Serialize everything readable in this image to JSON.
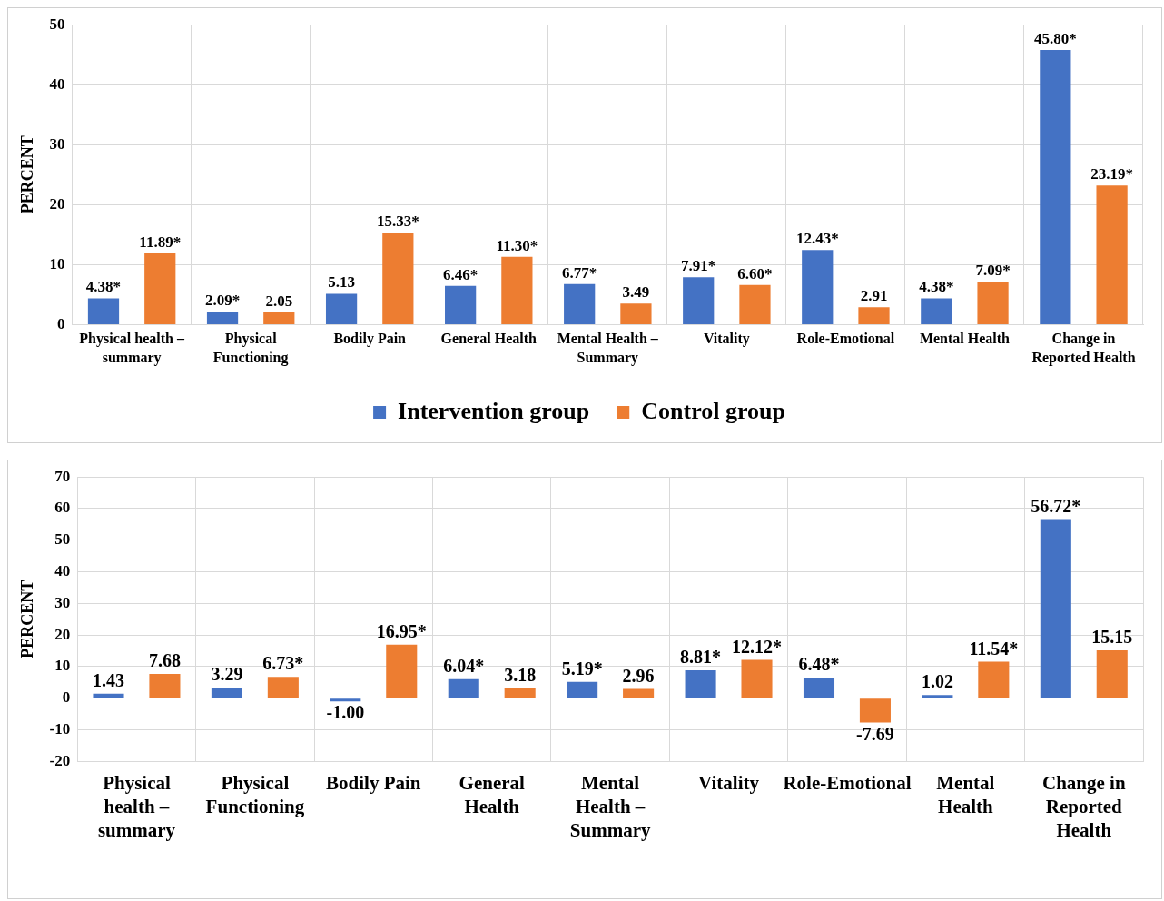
{
  "chart_data": [
    {
      "type": "bar",
      "ylabel": "PERCENT",
      "categories": [
        "Physical health – summary",
        "Physical Functioning",
        "Bodily Pain",
        "General Health",
        "Mental Health – Summary",
        "Vitality",
        "Role-Emotional",
        "Mental Health",
        "Change in Reported Health"
      ],
      "ylim": [
        0,
        50
      ],
      "yticks": [
        0,
        10,
        20,
        30,
        40,
        50
      ],
      "grid": true,
      "legend": "bottom",
      "series": [
        {
          "name": "Intervention group",
          "color": "#4472c4",
          "values": [
            4.38,
            2.09,
            5.13,
            6.46,
            6.77,
            7.91,
            12.43,
            4.38,
            45.8
          ],
          "value_labels": [
            "4.38*",
            "2.09*",
            "5.13",
            "6.46*",
            "6.77*",
            "7.91*",
            "12.43*",
            "4.38*",
            "45.80*"
          ]
        },
        {
          "name": "Control group",
          "color": "#ed7d31",
          "values": [
            11.89,
            2.05,
            15.33,
            11.3,
            3.49,
            6.6,
            2.91,
            7.09,
            23.19
          ],
          "value_labels": [
            "11.89*",
            "2.05",
            "15.33*",
            "11.30*",
            "3.49",
            "6.60*",
            "2.91",
            "7.09*",
            "23.19*"
          ]
        }
      ]
    },
    {
      "type": "bar",
      "ylabel": "PERCENT",
      "categories": [
        "Physical health – summary",
        "Physical Functioning",
        "Bodily Pain",
        "General Health",
        "Mental Health – Summary",
        "Vitality",
        "Role-Emotional",
        "Mental Health",
        "Change in Reported Health"
      ],
      "ylim": [
        -20,
        70
      ],
      "yticks": [
        -20,
        -10,
        0,
        10,
        20,
        30,
        40,
        50,
        60,
        70
      ],
      "grid": true,
      "series": [
        {
          "color": "#4472c4",
          "values": [
            1.43,
            3.29,
            -1.0,
            6.04,
            5.19,
            8.81,
            6.48,
            1.02,
            56.72
          ],
          "value_labels": [
            "1.43",
            "3.29",
            "-1.00",
            "6.04*",
            "5.19*",
            "8.81*",
            "6.48*",
            "1.02",
            "56.72*"
          ]
        },
        {
          "color": "#ed7d31",
          "values": [
            7.68,
            6.73,
            16.95,
            3.18,
            2.96,
            12.12,
            -7.69,
            11.54,
            15.15
          ],
          "value_labels": [
            "7.68",
            "6.73*",
            "16.95*",
            "3.18",
            "2.96",
            "12.12*",
            "-7.69",
            "11.54*",
            "15.15"
          ]
        }
      ]
    }
  ]
}
